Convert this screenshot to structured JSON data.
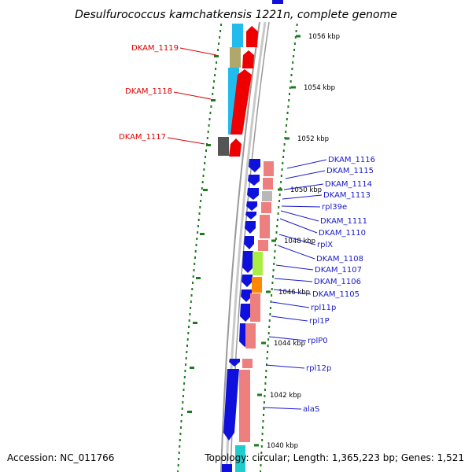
{
  "title": "Desulfurococcus kamchatkensis 1221n, complete genome",
  "footer": {
    "accession": "Accession: NC_011766",
    "topology": "Topology: circular; Length: 1,365,223 bp; Genes: 1,521"
  },
  "colors": {
    "backbone": "#a8a8a8",
    "tick": "#1f7a1f",
    "label_blue": "#1a1acc",
    "label_red": "#dd0000"
  },
  "ticks": [
    {
      "label": "1056 kbp"
    },
    {
      "label": "1054 kbp"
    },
    {
      "label": "1052 kbp"
    },
    {
      "label": "1050 kbp"
    },
    {
      "label": "1048 kbp"
    },
    {
      "label": "1046 kbp"
    },
    {
      "label": "1044 kbp"
    },
    {
      "label": "1042 kbp"
    },
    {
      "label": "1040 kbp"
    }
  ],
  "gene_labels_left": [
    {
      "text": "DKAM_1119"
    },
    {
      "text": "DKAM_1118"
    },
    {
      "text": "DKAM_1117"
    }
  ],
  "gene_labels_right": [
    {
      "text": "DKAM_1116"
    },
    {
      "text": "DKAM_1115"
    },
    {
      "text": "DKAM_1114"
    },
    {
      "text": "DKAM_1113"
    },
    {
      "text": "rpl39e"
    },
    {
      "text": "DKAM_1111"
    },
    {
      "text": "DKAM_1110"
    },
    {
      "text": "rplX"
    },
    {
      "text": "DKAM_1108"
    },
    {
      "text": "DKAM_1107"
    },
    {
      "text": "DKAM_1106"
    },
    {
      "text": "DKAM_1105"
    },
    {
      "text": "rpl11p"
    },
    {
      "text": "rpl1P"
    },
    {
      "text": "rplP0"
    },
    {
      "text": "rpl12p"
    },
    {
      "text": "alaS"
    }
  ]
}
